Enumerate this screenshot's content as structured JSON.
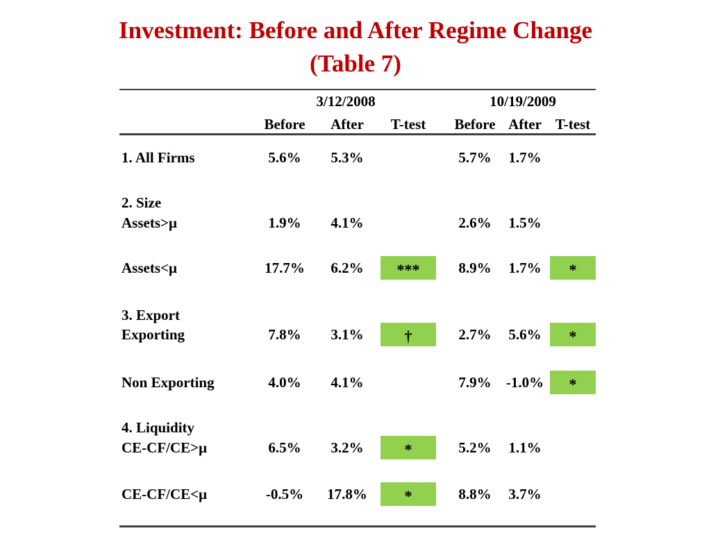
{
  "slide": {
    "title_line1": "Investment: Before and After Regime Change",
    "title_line2": "(Table 7)"
  },
  "colors": {
    "title_red": "#C00000",
    "highlight_green": "#92D050",
    "rule_gray": "#404040"
  },
  "table": {
    "group_headers": [
      "3/12/2008",
      "10/19/2009"
    ],
    "sub_headers": [
      "Before",
      "After",
      "T-test",
      "Before",
      "After",
      "T-test"
    ],
    "rows": [
      {
        "label": "1. All Firms",
        "b1": "5.6%",
        "a1": "5.3%",
        "t1": "",
        "b2": "5.7%",
        "a2": "1.7%",
        "t2": ""
      },
      {
        "label": "2. Size",
        "b1": "",
        "a1": "",
        "t1": "",
        "b2": "",
        "a2": "",
        "t2": ""
      },
      {
        "label": "Assets>μ",
        "b1": "1.9%",
        "a1": "4.1%",
        "t1": "",
        "b2": "2.6%",
        "a2": "1.5%",
        "t2": ""
      },
      {
        "label": "Assets<μ",
        "b1": "17.7%",
        "a1": "6.2%",
        "t1": "***",
        "b2": "8.9%",
        "a2": "1.7%",
        "t2": "*"
      },
      {
        "label": "3. Export",
        "b1": "",
        "a1": "",
        "t1": "",
        "b2": "",
        "a2": "",
        "t2": ""
      },
      {
        "label": "Exporting",
        "b1": "7.8%",
        "a1": "3.1%",
        "t1": "†",
        "b2": "2.7%",
        "a2": "5.6%",
        "t2": "*"
      },
      {
        "label": "Non Exporting",
        "b1": "4.0%",
        "a1": "4.1%",
        "t1": "",
        "b2": "7.9%",
        "a2": "-1.0%",
        "t2": "*"
      },
      {
        "label": "4. Liquidity",
        "b1": "",
        "a1": "",
        "t1": "",
        "b2": "",
        "a2": "",
        "t2": ""
      },
      {
        "label": "CE-CF/CE>μ",
        "b1": "6.5%",
        "a1": "3.2%",
        "t1": "*",
        "b2": "5.2%",
        "a2": "1.1%",
        "t2": ""
      },
      {
        "label": "CE-CF/CE<μ",
        "b1": "-0.5%",
        "a1": "17.8%",
        "t1": "*",
        "b2": "8.8%",
        "a2": "3.7%",
        "t2": ""
      }
    ]
  }
}
